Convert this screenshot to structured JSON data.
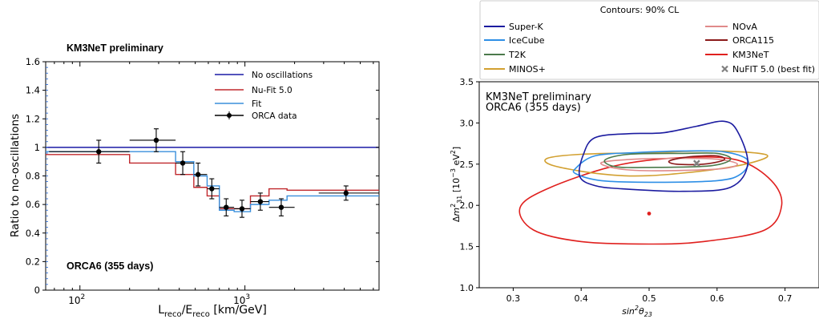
{
  "chart_data": [
    {
      "type": "line",
      "title": "KM3NeT preliminary",
      "annotation": "ORCA6 (355 days)",
      "xlabel": "Lreco/Ereco [km/GeV]",
      "ylabel": "Ratio to no-oscillations",
      "xscale": "log",
      "xlim": [
        62,
        6500
      ],
      "ylim": [
        0,
        1.6
      ],
      "yticks": [
        "0",
        "0.2",
        "0.4",
        "0.6",
        "0.8",
        "1",
        "1.2",
        "1.4",
        "1.6"
      ],
      "xtick_labels": [
        {
          "v": 100,
          "base": "10",
          "exp": "2"
        },
        {
          "v": 1000,
          "base": "10",
          "exp": "3"
        }
      ],
      "legend_position": "top-right",
      "series": [
        {
          "name": "No oscillations",
          "color": "#1a1aa6",
          "edges": [
            62,
            6500
          ],
          "values": [
            1.0
          ]
        },
        {
          "name": "Nu-Fit 5.0",
          "color": "#c0282d",
          "edges": [
            62,
            200,
            380,
            490,
            590,
            700,
            860,
            1080,
            1400,
            1800,
            6500
          ],
          "values": [
            0.95,
            0.89,
            0.81,
            0.72,
            0.66,
            0.57,
            0.57,
            0.66,
            0.71,
            0.7
          ]
        },
        {
          "name": "Fit",
          "color": "#3a8fdc",
          "edges": [
            62,
            200,
            380,
            490,
            590,
            700,
            860,
            1080,
            1400,
            1800,
            6500
          ],
          "values": [
            0.97,
            0.97,
            0.9,
            0.8,
            0.73,
            0.56,
            0.55,
            0.6,
            0.63,
            0.66
          ]
        },
        {
          "name": "ORCA data",
          "color": "#000000",
          "points": [
            {
              "x": 130,
              "y": 0.97,
              "xerr": [
                65,
                200
              ],
              "yerr": 0.08
            },
            {
              "x": 290,
              "y": 1.05,
              "xerr": [
                200,
                380
              ],
              "yerr": 0.08
            },
            {
              "x": 420,
              "y": 0.89,
              "xerr": [
                380,
                490
              ],
              "yerr": 0.08
            },
            {
              "x": 520,
              "y": 0.81,
              "xerr": [
                490,
                590
              ],
              "yerr": 0.08
            },
            {
              "x": 630,
              "y": 0.71,
              "xerr": [
                590,
                700
              ],
              "yerr": 0.07
            },
            {
              "x": 770,
              "y": 0.58,
              "xerr": [
                700,
                860
              ],
              "yerr": 0.06
            },
            {
              "x": 960,
              "y": 0.57,
              "xerr": [
                860,
                1080
              ],
              "yerr": 0.06
            },
            {
              "x": 1240,
              "y": 0.62,
              "xerr": [
                1080,
                1400
              ],
              "yerr": 0.06
            },
            {
              "x": 1660,
              "y": 0.58,
              "xerr": [
                1400,
                2000
              ],
              "yerr": 0.06
            },
            {
              "x": 4100,
              "y": 0.68,
              "xerr": [
                2800,
                6500
              ],
              "yerr": 0.05
            }
          ]
        }
      ]
    },
    {
      "type": "contour",
      "title": "KM3NeT preliminary",
      "annotation": "ORCA6 (355 days)",
      "legend_title": "Contours: 90% CL",
      "xlabel": "sin²θ23",
      "ylabel": "Δm²31 [10⁻³ eV²]",
      "xlim": [
        0.25,
        0.75
      ],
      "ylim": [
        1.0,
        3.5
      ],
      "xticks": [
        "0.3",
        "0.4",
        "0.5",
        "0.6",
        "0.7"
      ],
      "yticks": [
        "1.0",
        "1.5",
        "2.0",
        "2.5",
        "3.0",
        "3.5"
      ],
      "series": [
        {
          "name": "Super-K",
          "color": "#1c1ca0",
          "points": [
            [
              0.403,
              2.61
            ],
            [
              0.42,
              2.82
            ],
            [
              0.47,
              2.87
            ],
            [
              0.52,
              2.88
            ],
            [
              0.57,
              2.96
            ],
            [
              0.61,
              3.02
            ],
            [
              0.63,
              2.9
            ],
            [
              0.645,
              2.5
            ],
            [
              0.62,
              2.22
            ],
            [
              0.55,
              2.17
            ],
            [
              0.46,
              2.2
            ],
            [
              0.42,
              2.24
            ],
            [
              0.398,
              2.35
            ]
          ]
        },
        {
          "name": "IceCube",
          "color": "#2e8fe6",
          "points": [
            [
              0.392,
              2.45
            ],
            [
              0.42,
              2.6
            ],
            [
              0.48,
              2.64
            ],
            [
              0.55,
              2.66
            ],
            [
              0.61,
              2.65
            ],
            [
              0.645,
              2.55
            ],
            [
              0.635,
              2.38
            ],
            [
              0.6,
              2.3
            ],
            [
              0.5,
              2.28
            ],
            [
              0.43,
              2.3
            ],
            [
              0.393,
              2.38
            ]
          ]
        },
        {
          "name": "T2K",
          "color": "#4b7a4b",
          "points": [
            [
              0.435,
              2.55
            ],
            [
              0.47,
              2.62
            ],
            [
              0.55,
              2.63
            ],
            [
              0.6,
              2.63
            ],
            [
              0.62,
              2.56
            ],
            [
              0.59,
              2.48
            ],
            [
              0.5,
              2.46
            ],
            [
              0.45,
              2.47
            ]
          ]
        },
        {
          "name": "MINOS+",
          "color": "#d2a030",
          "points": [
            [
              0.35,
              2.57
            ],
            [
              0.4,
              2.62
            ],
            [
              0.5,
              2.64
            ],
            [
              0.6,
              2.66
            ],
            [
              0.67,
              2.62
            ],
            [
              0.66,
              2.54
            ],
            [
              0.6,
              2.44
            ],
            [
              0.5,
              2.36
            ],
            [
              0.43,
              2.38
            ],
            [
              0.36,
              2.48
            ]
          ]
        },
        {
          "name": "NOvA",
          "color": "#e08a8a",
          "points": [
            [
              0.43,
              2.52
            ],
            [
              0.48,
              2.56
            ],
            [
              0.55,
              2.57
            ],
            [
              0.6,
              2.56
            ],
            [
              0.63,
              2.5
            ],
            [
              0.6,
              2.44
            ],
            [
              0.5,
              2.42
            ],
            [
              0.45,
              2.45
            ]
          ]
        },
        {
          "name": "ORCA115",
          "color": "#8b1a1a",
          "points": [
            [
              0.53,
              2.54
            ],
            [
              0.56,
              2.59
            ],
            [
              0.6,
              2.6
            ],
            [
              0.61,
              2.55
            ],
            [
              0.58,
              2.5
            ],
            [
              0.54,
              2.5
            ]
          ]
        },
        {
          "name": "KM3NeT",
          "color": "#e0201e",
          "points": [
            [
              0.31,
              1.97
            ],
            [
              0.35,
              2.2
            ],
            [
              0.45,
              2.48
            ],
            [
              0.55,
              2.58
            ],
            [
              0.63,
              2.55
            ],
            [
              0.68,
              2.3
            ],
            [
              0.695,
              2.0
            ],
            [
              0.67,
              1.7
            ],
            [
              0.58,
              1.56
            ],
            [
              0.5,
              1.53
            ],
            [
              0.4,
              1.56
            ],
            [
              0.33,
              1.7
            ]
          ]
        },
        {
          "name": "NuFIT 5.0 (best fit)",
          "color": "#808080",
          "marker": "x",
          "point": [
            0.57,
            2.51
          ]
        }
      ],
      "extra_points": [
        {
          "x": 0.5,
          "y": 1.9,
          "color": "#e0201e"
        }
      ]
    }
  ]
}
